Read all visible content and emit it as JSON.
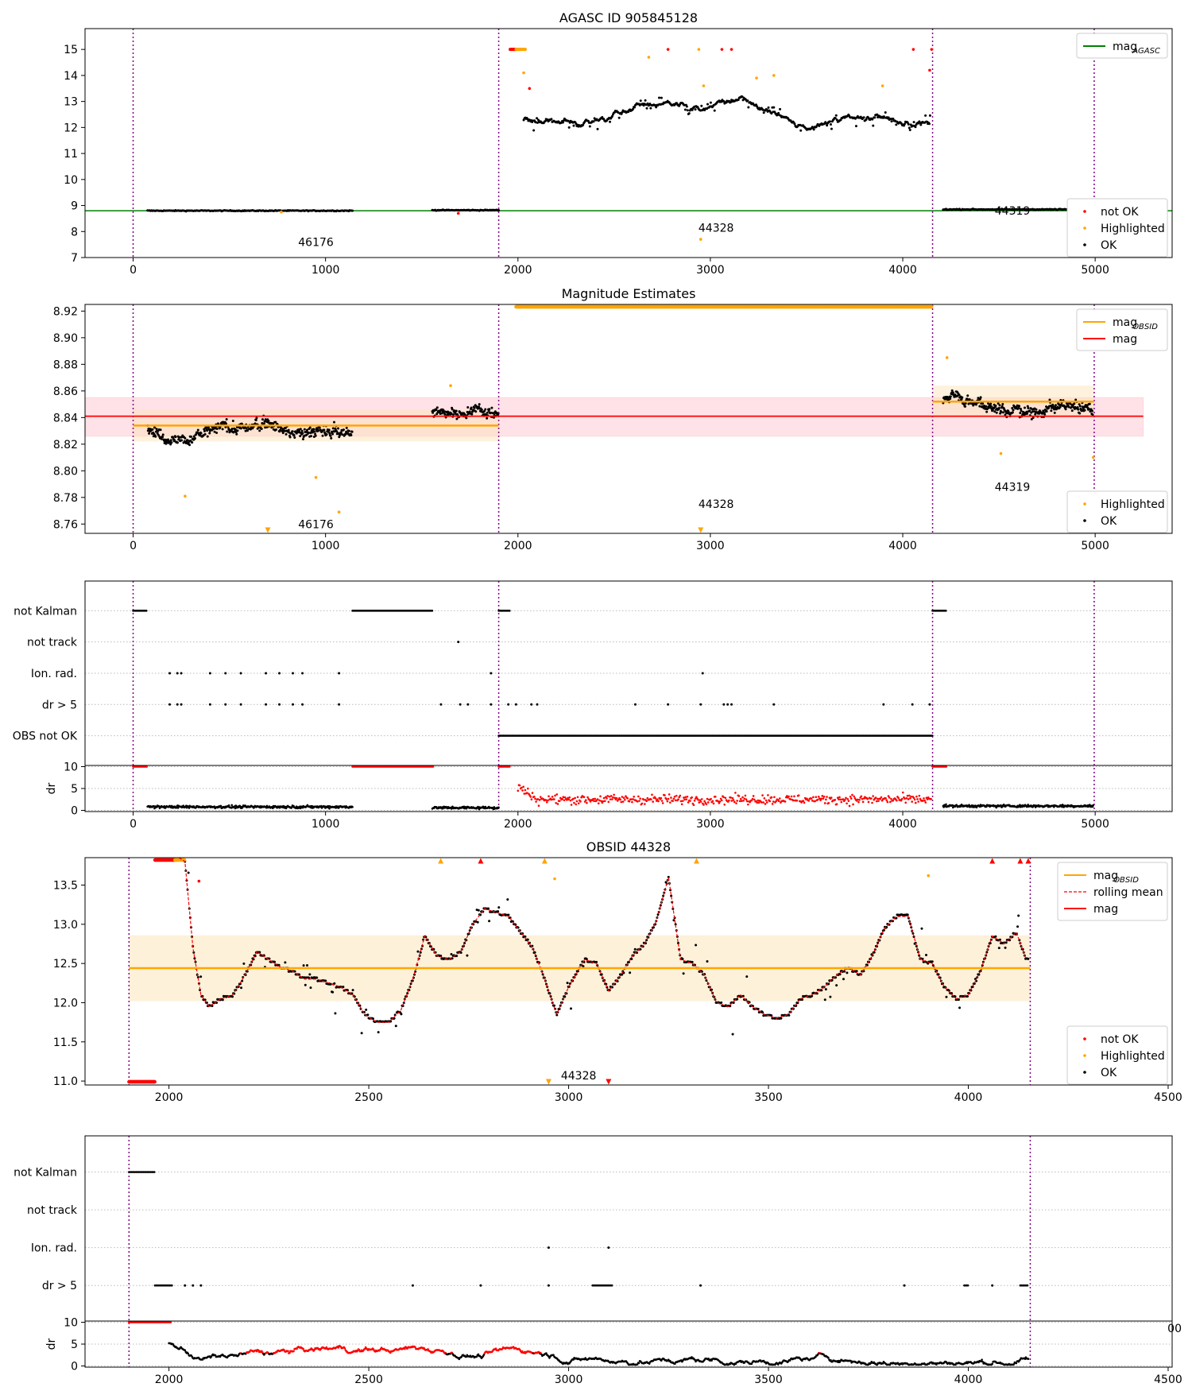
{
  "colors": {
    "ok": "#000000",
    "not_ok": "#ff0000",
    "highlighted": "#ffa500",
    "mag_agasc": "#008000",
    "mag": "#ff0000",
    "mag_obsid": "#ffa500",
    "obs_boundary": "#800080",
    "mag_band": "#ffc0cb",
    "obsid_band": "#fce3b6"
  },
  "chart_data": [
    {
      "id": "agasc",
      "type": "scatter",
      "title": "AGASC ID 905845128",
      "xlim": [
        -250,
        5400
      ],
      "ylim": [
        7,
        15.8
      ],
      "xticks": [
        0,
        1000,
        2000,
        3000,
        4000,
        5000
      ],
      "yticks": [
        7,
        8,
        9,
        10,
        11,
        12,
        13,
        14,
        15
      ],
      "legend_line": {
        "entries": [
          {
            "label": "mag",
            "sub": "AGASC",
            "color": "#008000"
          }
        ],
        "loc": "top-right"
      },
      "legend_points": {
        "entries": [
          {
            "label": "not OK",
            "color": "#ff0000"
          },
          {
            "label": "Highlighted",
            "color": "#ffa500"
          },
          {
            "label": "OK",
            "color": "#000000"
          }
        ],
        "loc": "lower-right"
      },
      "boundaries": [
        0,
        1900,
        4155,
        4995
      ],
      "mag_agasc": 8.8,
      "obs_labels": [
        {
          "text": "46176",
          "x": 950,
          "y": 7.45
        },
        {
          "text": "44328",
          "x": 3030,
          "y": 8.0
        },
        {
          "text": "44319",
          "x": 4570,
          "y": 8.65
        }
      ],
      "series_segments": [
        {
          "obsid": "46176",
          "x": [
            75,
            1140
          ],
          "level": 8.8,
          "color": "ok"
        },
        {
          "obsid": "46176",
          "x": [
            1555,
            1900
          ],
          "level": 8.82,
          "color": "ok"
        },
        {
          "obsid": "44328",
          "x": [
            2030,
            4145
          ],
          "level": 12.4,
          "color": "ok"
        },
        {
          "obsid": "44319",
          "x": [
            4210,
            4990
          ],
          "level": 8.85,
          "color": "ok"
        }
      ],
      "highlighted_points": [
        {
          "x": 1960,
          "y": 15.0
        },
        {
          "x": 2000,
          "y": 15.0
        },
        {
          "x": 2030,
          "y": 14.1
        },
        {
          "x": 2680,
          "y": 14.7
        },
        {
          "x": 2940,
          "y": 15.0
        },
        {
          "x": 2965,
          "y": 13.6
        },
        {
          "x": 3240,
          "y": 13.9
        },
        {
          "x": 3330,
          "y": 14.0
        },
        {
          "x": 3895,
          "y": 13.6
        },
        {
          "x": 2950,
          "y": 7.7
        },
        {
          "x": 770,
          "y": 8.75
        }
      ],
      "not_ok_points": [
        {
          "x": 1960,
          "y": 15.0
        },
        {
          "x": 2060,
          "y": 13.5
        },
        {
          "x": 2780,
          "y": 15.0
        },
        {
          "x": 3060,
          "y": 15.0
        },
        {
          "x": 3110,
          "y": 15.0
        },
        {
          "x": 4055,
          "y": 15.0
        },
        {
          "x": 4150,
          "y": 15.0
        },
        {
          "x": 4140,
          "y": 14.2
        },
        {
          "x": 1690,
          "y": 8.7
        }
      ]
    },
    {
      "id": "mag_estimates",
      "type": "scatter",
      "title": "Magnitude Estimates",
      "xlim": [
        -250,
        5400
      ],
      "ylim": [
        8.753,
        8.925
      ],
      "xticks": [
        0,
        1000,
        2000,
        3000,
        4000,
        5000
      ],
      "yticks": [
        8.76,
        8.78,
        8.8,
        8.82,
        8.84,
        8.86,
        8.88,
        8.9,
        8.92
      ],
      "legend_line": {
        "entries": [
          {
            "label": "mag",
            "sub": "OBSID",
            "color": "#ffa500"
          },
          {
            "label": "mag",
            "sub": "",
            "color": "#ff0000"
          }
        ],
        "loc": "top-right"
      },
      "legend_points": {
        "entries": [
          {
            "label": "Highlighted",
            "color": "#ffa500"
          },
          {
            "label": "OK",
            "color": "#000000"
          }
        ],
        "loc": "lower-right"
      },
      "boundaries": [
        0,
        1900,
        4155,
        4995
      ],
      "mag": 8.841,
      "mag_band": [
        8.826,
        8.855
      ],
      "mag_obsid": [
        {
          "obsid": "46176",
          "x": [
            0,
            1900
          ],
          "value": 8.834,
          "band": [
            8.822,
            8.846
          ]
        },
        {
          "obsid": "44319",
          "x": [
            4155,
            4995
          ],
          "value": 8.852,
          "band": [
            8.84,
            8.864
          ]
        }
      ],
      "band_x": [
        -250,
        5250
      ],
      "obs_labels": [
        {
          "text": "46176",
          "x": 950,
          "y": 8.757
        },
        {
          "text": "44328",
          "x": 3030,
          "y": 8.772
        },
        {
          "text": "44319",
          "x": 4570,
          "y": 8.785
        }
      ],
      "series_segments": [
        {
          "obsid": "46176",
          "x": [
            75,
            1140
          ],
          "level": 8.833,
          "spread": 0.012,
          "color": "ok"
        },
        {
          "obsid": "46176",
          "x": [
            1555,
            1900
          ],
          "level": 8.843,
          "spread": 0.01,
          "color": "ok"
        },
        {
          "obsid": "44319",
          "x": [
            4210,
            4990
          ],
          "level": 8.853,
          "spread": 0.011,
          "color": "ok"
        }
      ],
      "highlighted_points": [
        {
          "x": 270,
          "y": 8.781
        },
        {
          "x": 950,
          "y": 8.795
        },
        {
          "x": 1070,
          "y": 8.769
        },
        {
          "x": 4510,
          "y": 8.813
        },
        {
          "x": 4990,
          "y": 8.81
        },
        {
          "x": 1650,
          "y": 8.864
        },
        {
          "x": 4230,
          "y": 8.885
        }
      ],
      "highlighted_top_band": [
        1990,
        4150
      ],
      "highlighted_markers_bottom": [
        700,
        2950
      ]
    },
    {
      "id": "flags_all",
      "type": "scatter",
      "xlim": [
        -250,
        5400
      ],
      "xticks": [
        0,
        1000,
        2000,
        3000,
        4000,
        5000
      ],
      "flag_rows": [
        "not Kalman",
        "not track",
        "Ion. rad.",
        "dr > 5",
        "OBS not OK"
      ],
      "boundaries": [
        0,
        1900,
        4155,
        4995
      ],
      "flag_segments": [
        {
          "row": "not Kalman",
          "x": [
            0,
            75
          ]
        },
        {
          "row": "not Kalman",
          "x": [
            1140,
            1560
          ]
        },
        {
          "row": "not Kalman",
          "x": [
            1900,
            1960
          ]
        },
        {
          "row": "not Kalman",
          "x": [
            4155,
            4230
          ]
        },
        {
          "row": "OBS not OK",
          "x": [
            1900,
            4155
          ]
        }
      ],
      "flag_points": [
        {
          "row": "not track",
          "x": [
            1690
          ]
        },
        {
          "row": "Ion. rad.",
          "x": [
            190,
            230,
            250,
            400,
            480,
            560,
            690,
            760,
            830,
            880,
            1070,
            1860,
            2960
          ]
        },
        {
          "row": "dr > 5",
          "x": [
            190,
            230,
            250,
            400,
            480,
            560,
            690,
            760,
            830,
            880,
            1070,
            1600,
            1700,
            1740,
            1860,
            1950,
            1990,
            2070,
            2100,
            2610,
            2780,
            2950,
            3070,
            3090,
            3110,
            3330,
            3900,
            4050,
            4140
          ]
        }
      ],
      "dr_panel": {
        "ylabel": "dr",
        "yticks": [
          0,
          5,
          10
        ],
        "ylim": [
          0,
          10
        ],
        "ok_segments": [
          {
            "x": [
              75,
              1140
            ],
            "level": 0.8
          },
          {
            "x": [
              1555,
              1900
            ],
            "level": 0.6
          },
          {
            "x": [
              4210,
              4990
            ],
            "level": 1.0
          }
        ],
        "not_ok_segments": [
          {
            "x": [
              1900,
              1960
            ],
            "level": 10
          },
          {
            "x": [
              1140,
              1560
            ],
            "level": 10
          },
          {
            "x": [
              0,
              75
            ],
            "level": 10
          },
          {
            "x": [
              4155,
              4230
            ],
            "level": 10
          },
          {
            "x": [
              2000,
              4150
            ],
            "level": 2.5
          }
        ]
      }
    },
    {
      "id": "obsid_44328",
      "type": "line",
      "title": "OBSID 44328",
      "xlim": [
        1790,
        4510
      ],
      "ylim": [
        10.95,
        13.85
      ],
      "xticks": [
        2000,
        2500,
        3000,
        3500,
        4000,
        4500
      ],
      "yticks": [
        11.0,
        11.5,
        12.0,
        12.5,
        13.0,
        13.5
      ],
      "legend_line": {
        "entries": [
          {
            "label": "mag",
            "sub": "OBSID",
            "color": "#ffa500",
            "style": "solid"
          },
          {
            "label": "rolling mean",
            "sub": "",
            "color": "#ff0000",
            "style": "dashed"
          },
          {
            "label": "mag",
            "sub": "",
            "color": "#ff0000",
            "style": "solid"
          }
        ],
        "loc": "top-right"
      },
      "legend_points": {
        "entries": [
          {
            "label": "not OK",
            "color": "#ff0000"
          },
          {
            "label": "Highlighted",
            "color": "#ffa500"
          },
          {
            "label": "OK",
            "color": "#000000"
          }
        ],
        "loc": "lower-right"
      },
      "boundaries": [
        1900,
        4155
      ],
      "mag_obsid": 12.44,
      "mag_obsid_band": [
        12.02,
        12.86
      ],
      "obs_label": {
        "text": "44328",
        "x": 3025,
        "y": 11.02
      },
      "rolling_mean": {
        "x": [
          2040,
          2060,
          2080,
          2100,
          2130,
          2160,
          2190,
          2220,
          2250,
          2280,
          2310,
          2340,
          2370,
          2400,
          2430,
          2460,
          2490,
          2520,
          2550,
          2580,
          2610,
          2640,
          2670,
          2700,
          2730,
          2760,
          2790,
          2820,
          2850,
          2880,
          2910,
          2940,
          2970,
          3000,
          3040,
          3070,
          3100,
          3130,
          3160,
          3190,
          3220,
          3250,
          3280,
          3310,
          3340,
          3370,
          3400,
          3430,
          3460,
          3490,
          3520,
          3550,
          3580,
          3610,
          3640,
          3670,
          3700,
          3730,
          3760,
          3790,
          3820,
          3850,
          3880,
          3910,
          3940,
          3970,
          4000,
          4030,
          4060,
          4090,
          4120,
          4145
        ],
        "y": [
          13.8,
          12.7,
          12.1,
          11.95,
          12.05,
          12.1,
          12.35,
          12.65,
          12.55,
          12.45,
          12.4,
          12.3,
          12.3,
          12.25,
          12.2,
          12.1,
          11.85,
          11.75,
          11.75,
          11.9,
          12.3,
          12.85,
          12.6,
          12.55,
          12.65,
          13.0,
          13.2,
          13.15,
          13.1,
          12.9,
          12.7,
          12.3,
          11.85,
          12.2,
          12.55,
          12.5,
          12.15,
          12.35,
          12.6,
          12.75,
          13.05,
          13.6,
          12.55,
          12.5,
          12.35,
          12.0,
          11.95,
          12.1,
          11.95,
          11.85,
          11.8,
          11.85,
          12.05,
          12.1,
          12.2,
          12.35,
          12.45,
          12.35,
          12.6,
          12.95,
          13.1,
          13.1,
          12.55,
          12.5,
          12.2,
          12.05,
          12.1,
          12.4,
          12.85,
          12.75,
          12.9,
          12.55
        ]
      },
      "not_ok_bottom_band": [
        1900,
        1965
      ],
      "not_ok_top_band": [
        1965,
        2015
      ],
      "highlighted_top_band": [
        2015,
        2040
      ],
      "highlighted_markers_top": [
        2680,
        2940,
        3320
      ],
      "not_ok_markers_top": [
        2780,
        4060,
        4130,
        4150
      ],
      "highlighted_markers_bottom": [
        2950
      ],
      "not_ok_markers_bottom": [
        3100
      ],
      "highlighted_points": [
        {
          "x": 2965,
          "y": 13.58
        },
        {
          "x": 3900,
          "y": 13.62
        }
      ],
      "not_ok_points": [
        {
          "x": 2075,
          "y": 13.55
        }
      ]
    },
    {
      "id": "flags_obsid",
      "type": "scatter",
      "xlim": [
        1790,
        4510
      ],
      "xticks": [
        2000,
        2500,
        3000,
        3500,
        4000,
        4500
      ],
      "flag_rows": [
        "not Kalman",
        "not track",
        "Ion. rad.",
        "dr > 5"
      ],
      "boundaries": [
        1900,
        4155
      ],
      "flag_segments": [
        {
          "row": "not Kalman",
          "x": [
            1900,
            1965
          ]
        },
        {
          "row": "dr > 5",
          "x": [
            1965,
            2010
          ]
        },
        {
          "row": "dr > 5",
          "x": [
            3060,
            3110
          ]
        },
        {
          "row": "dr > 5",
          "x": [
            3990,
            4000
          ]
        },
        {
          "row": "dr > 5",
          "x": [
            4130,
            4150
          ]
        }
      ],
      "flag_points": [
        {
          "row": "Ion. rad.",
          "x": [
            2950,
            3100
          ]
        },
        {
          "row": "dr > 5",
          "x": [
            2040,
            2060,
            2080,
            2610,
            2780,
            2950,
            3330,
            3840,
            4060
          ]
        }
      ],
      "dr_panel": {
        "ylabel": "dr",
        "yticks": [
          0,
          5,
          10
        ],
        "ylim": [
          0,
          10
        ],
        "tick_overflow_label": "00",
        "not_ok_segments": [
          {
            "x": [
              1900,
              2005
            ],
            "level": 10
          }
        ],
        "mixed_x": [
          2000,
          4150
        ],
        "mixed_level": 2.5
      }
    }
  ]
}
